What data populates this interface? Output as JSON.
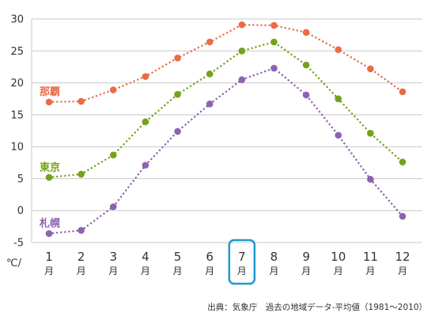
{
  "chart_data": {
    "type": "line",
    "unit_label": "℃/",
    "month_unit": "月",
    "categories": [
      "1",
      "2",
      "3",
      "4",
      "5",
      "6",
      "7",
      "8",
      "9",
      "10",
      "11",
      "12"
    ],
    "ylim": [
      -5,
      30
    ],
    "yticks": [
      30,
      25,
      20,
      15,
      10,
      5,
      0,
      -5
    ],
    "grid": true,
    "highlight_category": "7",
    "series": [
      {
        "name": "那覇",
        "color": "#ea6b47",
        "values": [
          17.0,
          17.1,
          18.9,
          21.0,
          23.9,
          26.4,
          29.1,
          29.0,
          27.9,
          25.2,
          22.2,
          18.6
        ]
      },
      {
        "name": "東京",
        "color": "#74a21b",
        "values": [
          5.2,
          5.7,
          8.7,
          13.9,
          18.2,
          21.4,
          25.0,
          26.4,
          22.8,
          17.5,
          12.1,
          7.6
        ]
      },
      {
        "name": "札幌",
        "color": "#8d62b0",
        "values": [
          -3.6,
          -3.1,
          0.6,
          7.1,
          12.4,
          16.7,
          20.5,
          22.3,
          18.1,
          11.8,
          4.9,
          -0.9
        ]
      }
    ],
    "source": "出典：気象庁　過去の地域データ-平均値（1981〜2010）"
  }
}
